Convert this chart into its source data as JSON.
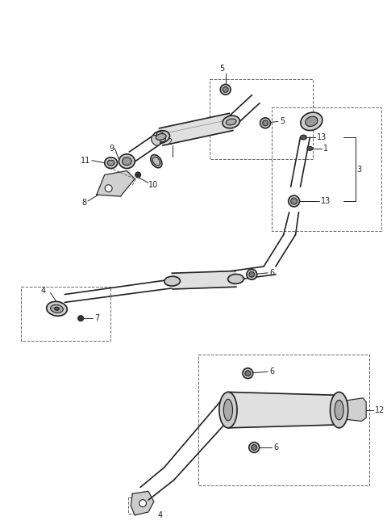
{
  "bg_color": "#ffffff",
  "line_color": "#222222",
  "dash_color": "#666666",
  "lw_pipe": 1.2,
  "lw_detail": 0.8,
  "lw_dash": 0.7,
  "label_fontsize": 7.0,
  "fig_w": 4.8,
  "fig_h": 6.55,
  "dpi": 100
}
